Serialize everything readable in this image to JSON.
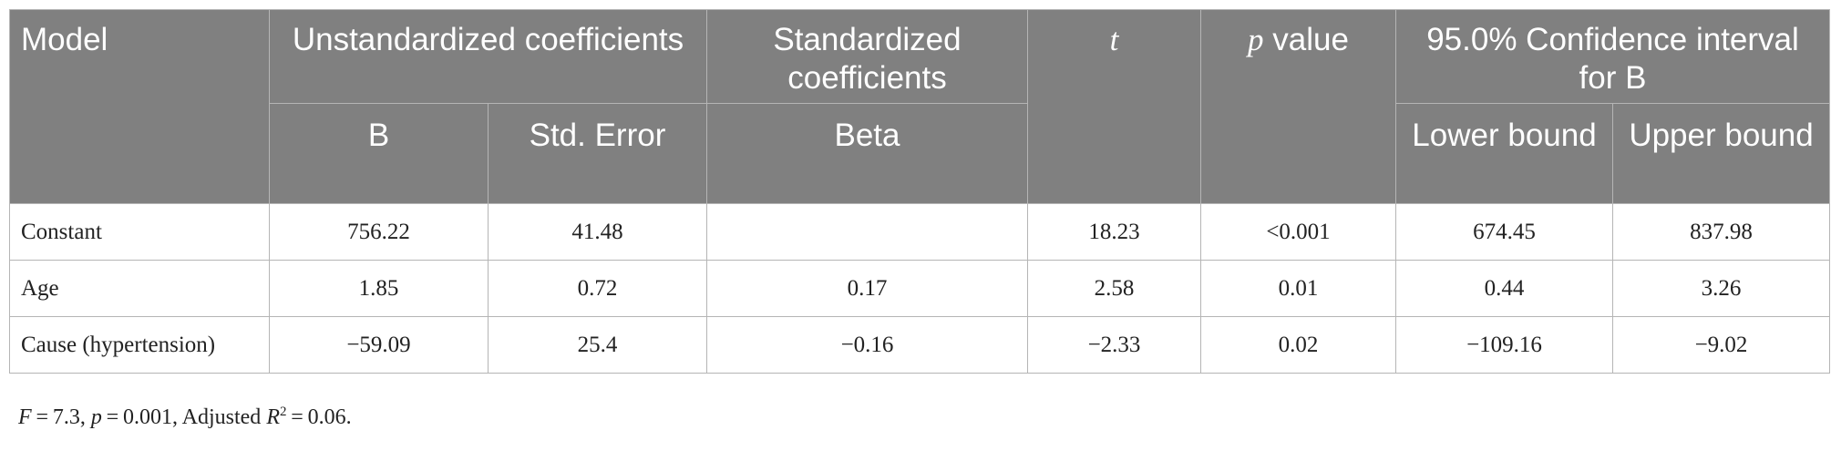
{
  "table": {
    "header": {
      "model": "Model",
      "unstd": "Unstandardized coefficients",
      "std": "Standardized coefficients",
      "t": "t",
      "p_italic": "p",
      "p_rest": " value",
      "ci": "95.0% Confidence interval for B",
      "b": "B",
      "se": "Std. Error",
      "beta": "Beta",
      "lower": "Lower bound",
      "upper": "Upper bound"
    },
    "rows": [
      {
        "model": "Constant",
        "b": "756.22",
        "se": "41.48",
        "beta": "",
        "t": "18.23",
        "p": "<0.001",
        "lower": "674.45",
        "upper": "837.98"
      },
      {
        "model": "Age",
        "b": "1.85",
        "se": "0.72",
        "beta": "0.17",
        "t": "2.58",
        "p": "0.01",
        "lower": "0.44",
        "upper": "3.26"
      },
      {
        "model": "Cause (hypertension)",
        "b": "−59.09",
        "se": "25.4",
        "beta": "−0.16",
        "t": "−2.33",
        "p": "0.02",
        "lower": "−109.16",
        "upper": "−9.02"
      }
    ]
  },
  "footnote": {
    "f_label": "F",
    "f_value": " = 7.3, ",
    "p_label": "p",
    "p_value": " = 0.001, Adjusted ",
    "r_label": "R",
    "r_sup": "2",
    "r_value": " = 0.06."
  }
}
